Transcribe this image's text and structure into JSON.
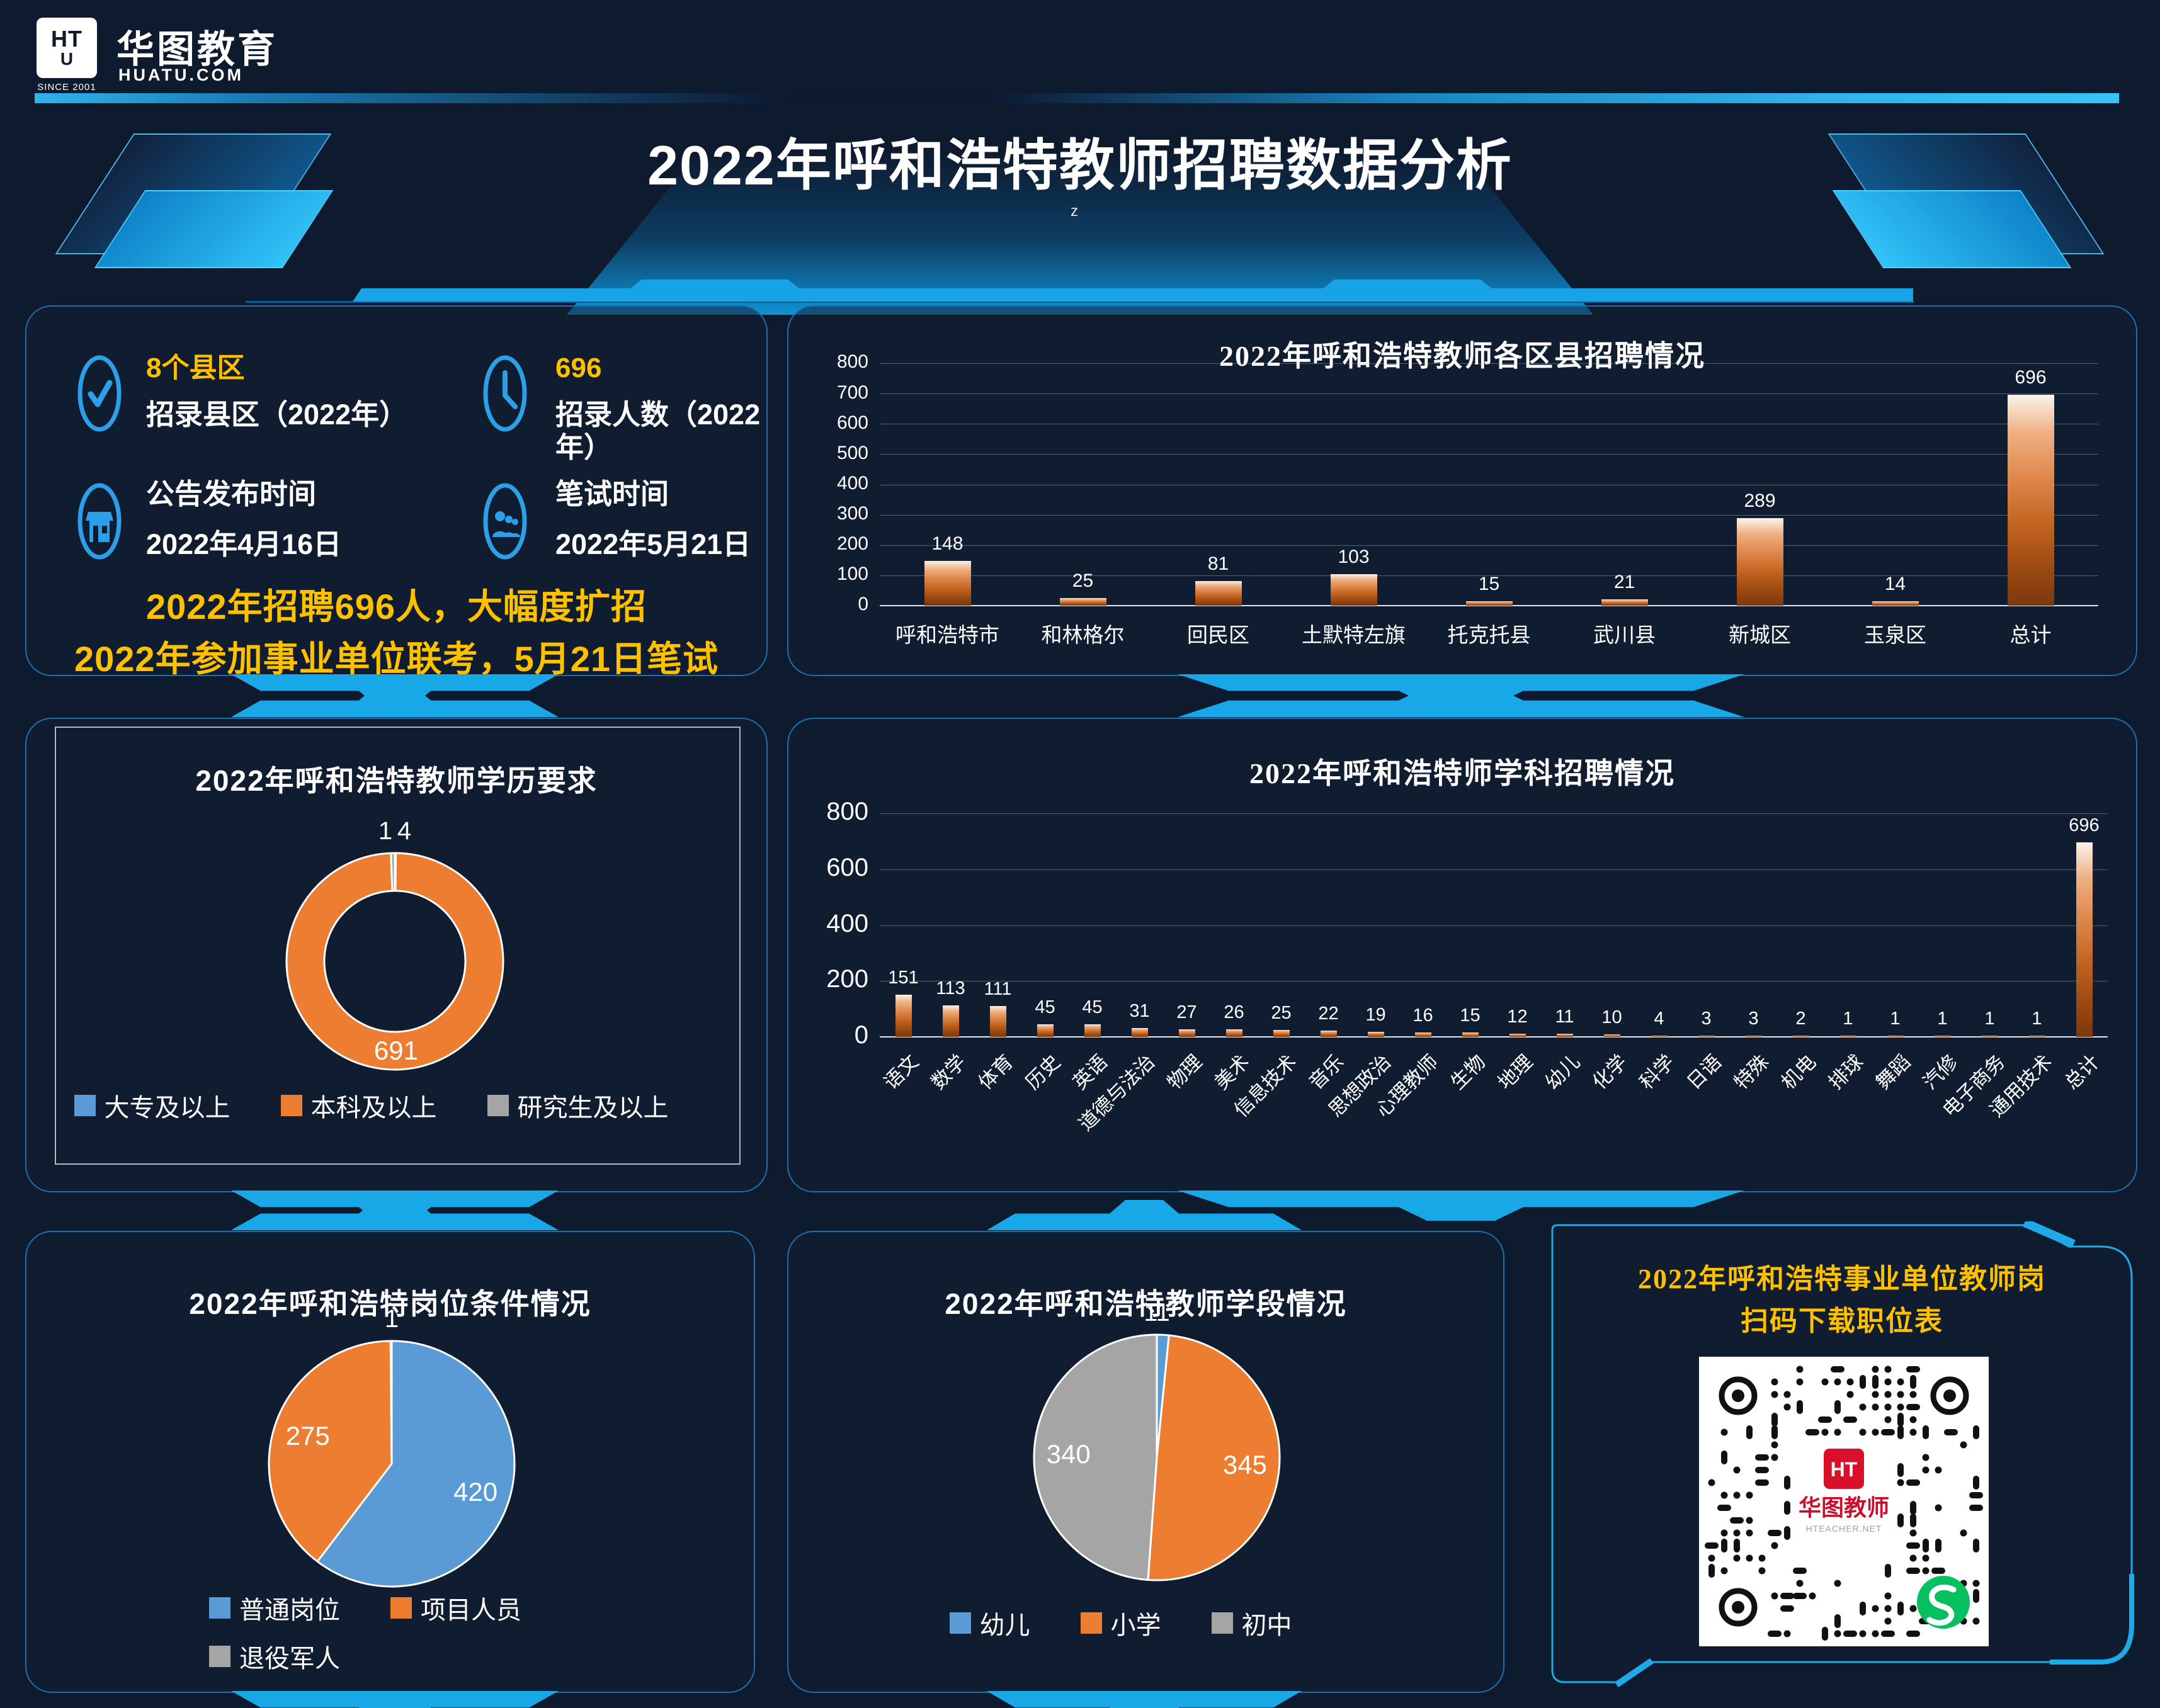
{
  "page": {
    "bg": "#0e1a2e",
    "accent": "#18a8e8",
    "panel_border": "#1b6fae",
    "highlight_yellow": "#ffc000"
  },
  "header": {
    "logo_monogram_top": "HT",
    "logo_monogram_bottom": "U",
    "logo_since": "SINCE 2001",
    "logo_zh": "华图教育",
    "logo_domain": "HUATU.COM"
  },
  "title": {
    "text": "2022年呼和浩特教师招聘数据分析",
    "stray_glyph": "z"
  },
  "stats": {
    "items": [
      {
        "icon": "check-circle-icon",
        "value": "8个县区",
        "label": "招录县区（2022年）"
      },
      {
        "icon": "clock-icon",
        "value": "696",
        "label": "招录人数（2022年）"
      },
      {
        "icon": "storefront-icon",
        "value": "公告发布时间",
        "label": "2022年4月16日"
      },
      {
        "icon": "people-icon",
        "value": "笔试时间",
        "label": "2022年5月21日"
      }
    ],
    "highlights": [
      "2022年招聘696人，大幅度扩招",
      "2022年参加事业单位联考，5月21日笔试"
    ]
  },
  "chart_data": [
    {
      "type": "bar",
      "title": "2022年呼和浩特教师各区县招聘情况",
      "categories": [
        "呼和浩特市",
        "和林格尔",
        "回民区",
        "土默特左旗",
        "托克托县",
        "武川县",
        "新城区",
        "玉泉区",
        "总计"
      ],
      "values": [
        148,
        25,
        81,
        103,
        15,
        21,
        289,
        14,
        696
      ],
      "ylim": [
        0,
        800
      ],
      "ytick_step": 100,
      "grid": true,
      "legend_position": "none",
      "bar_gradient": [
        "#f9f4ec",
        "#e08a4f",
        "#7c380c"
      ]
    },
    {
      "type": "donut",
      "title": "2022年呼和浩特教师学历要求",
      "categories": [
        "大专及以上",
        "本科及以上",
        "研究生及以上"
      ],
      "values": [
        1,
        691,
        4
      ],
      "colors": [
        "#5b9bd5",
        "#ed7d31",
        "#a5a5a5"
      ],
      "legend_position": "bottom"
    },
    {
      "type": "bar",
      "title": "2022年呼和浩特师学科招聘情况",
      "categories": [
        "语文",
        "数学",
        "体育",
        "历史",
        "英语",
        "道德与法治",
        "物理",
        "美术",
        "信息技术",
        "音乐",
        "思想政治",
        "心理教师",
        "生物",
        "地理",
        "幼儿",
        "化学",
        "科学",
        "日语",
        "特殊",
        "机电",
        "排球",
        "舞蹈",
        "汽修",
        "电子商务",
        "通用技术",
        "总计"
      ],
      "values": [
        151,
        113,
        111,
        45,
        45,
        31,
        27,
        26,
        25,
        22,
        19,
        16,
        15,
        12,
        11,
        10,
        4,
        3,
        3,
        2,
        1,
        1,
        1,
        1,
        1,
        696
      ],
      "ylim": [
        0,
        800
      ],
      "ytick_step": 200,
      "grid": true,
      "xlabel_rotation": -45,
      "legend_position": "none",
      "bar_gradient": [
        "#f9f4ec",
        "#e08a4f",
        "#7c380c"
      ]
    },
    {
      "type": "pie",
      "title": "2022年呼和浩特岗位条件情况",
      "categories": [
        "普通岗位",
        "项目人员",
        "退役军人"
      ],
      "values": [
        420,
        275,
        1
      ],
      "colors": [
        "#5b9bd5",
        "#ed7d31",
        "#a5a5a5"
      ],
      "legend_position": "bottom-two-rows"
    },
    {
      "type": "pie",
      "title": "2022年呼和浩特教师学段情况",
      "categories": [
        "幼儿",
        "小学",
        "初中"
      ],
      "values": [
        11,
        345,
        340
      ],
      "colors": [
        "#5b9bd5",
        "#ed7d31",
        "#a5a5a5"
      ],
      "legend_position": "bottom"
    }
  ],
  "qr": {
    "title_line1": "2022年呼和浩特事业单位教师岗",
    "title_line2": "扫码下载职位表",
    "center_monogram": "HT",
    "center_logo_text": "华图教师",
    "center_logo_sub": "HTEACHER.NET"
  }
}
